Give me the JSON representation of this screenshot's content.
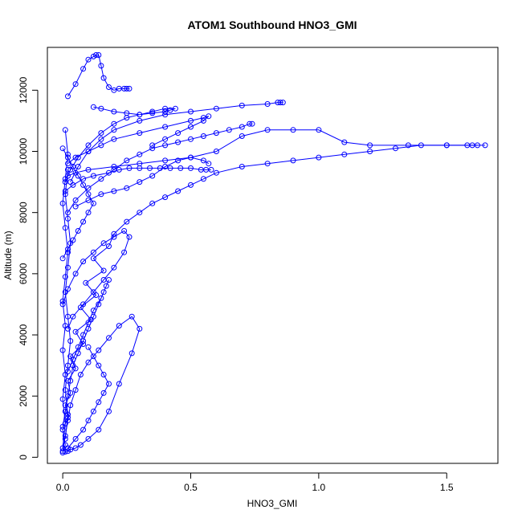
{
  "chart_data": {
    "type": "scatter",
    "title": "ATOM1 Southbound HNO3_GMI",
    "xlabel": "HNO3_GMI",
    "ylabel": "Altitude (m)",
    "xlim": [
      -0.06,
      1.7
    ],
    "ylim": [
      -200,
      13400
    ],
    "xticks": [
      0.0,
      0.5,
      1.0,
      1.5
    ],
    "xtick_labels": [
      "0.0",
      "0.5",
      "1.0",
      "1.5"
    ],
    "yticks": [
      0,
      2000,
      4000,
      6000,
      8000,
      10000,
      12000
    ],
    "ytick_labels": [
      "0",
      "2000",
      "4000",
      "6000",
      "8000",
      "10000",
      "12000"
    ],
    "marker": "open-circle",
    "connected": true,
    "grid": false,
    "colors": {
      "series": "#0000ff",
      "axis": "#000000",
      "background": "#ffffff"
    },
    "series": [
      {
        "x": [
          0.0,
          0.01,
          0.0,
          0.02,
          0.01,
          0.03,
          0.02,
          0.05,
          0.03,
          0.08,
          0.05,
          0.11,
          0.07,
          0.13,
          0.09,
          0.16,
          0.12,
          0.18,
          0.2,
          0.25,
          0.3,
          0.35,
          0.4,
          0.45,
          0.5,
          0.55,
          0.6,
          0.7,
          0.8,
          0.9,
          1.0,
          1.1,
          1.2,
          1.3,
          1.4,
          1.5,
          1.58,
          1.6,
          1.65
        ],
        "y": [
          150,
          400,
          900,
          1300,
          1700,
          2100,
          2500,
          2900,
          3300,
          3700,
          4100,
          4500,
          4900,
          5300,
          5700,
          6100,
          6500,
          6900,
          7300,
          7700,
          8000,
          8300,
          8500,
          8700,
          8900,
          9100,
          9300,
          9500,
          9600,
          9700,
          9800,
          9900,
          10000,
          10100,
          10200,
          10200,
          10200,
          10200,
          10200
        ]
      },
      {
        "x": [
          1.62,
          1.5,
          1.35,
          1.2,
          1.1,
          1.0,
          0.9,
          0.8,
          0.7,
          0.6,
          0.5,
          0.4,
          0.3,
          0.2,
          0.1,
          0.05,
          0.02
        ],
        "y": [
          10200,
          10200,
          10200,
          10200,
          10300,
          10700,
          10700,
          10700,
          10500,
          10000,
          9800,
          9700,
          9600,
          9500,
          9400,
          9300,
          9200
        ]
      },
      {
        "x": [
          0.0,
          0.01,
          0.02,
          0.03,
          0.05,
          0.07,
          0.1,
          0.14,
          0.18,
          0.22,
          0.27,
          0.3,
          0.27,
          0.22,
          0.18,
          0.14,
          0.1,
          0.07,
          0.05,
          0.03,
          0.02,
          0.01
        ],
        "y": [
          200,
          700,
          1200,
          1700,
          2200,
          2700,
          3100,
          3500,
          3900,
          4300,
          4600,
          4200,
          3400,
          2400,
          1500,
          900,
          600,
          400,
          300,
          250,
          200,
          180
        ]
      },
      {
        "x": [
          0.02,
          0.05,
          0.1,
          0.15,
          0.2,
          0.25,
          0.3,
          0.35,
          0.4,
          0.45,
          0.5,
          0.55,
          0.6,
          0.65,
          0.7,
          0.73,
          0.74
        ],
        "y": [
          8000,
          8400,
          8800,
          9100,
          9400,
          9700,
          9900,
          10100,
          10200,
          10300,
          10400,
          10500,
          10600,
          10700,
          10800,
          10900,
          10900
        ]
      },
      {
        "x": [
          0.01,
          0.03,
          0.06,
          0.1,
          0.15,
          0.2,
          0.25,
          0.3,
          0.35,
          0.4,
          0.44,
          0.42,
          0.4,
          0.35,
          0.3,
          0.25,
          0.2,
          0.15,
          0.12
        ],
        "y": [
          9000,
          9400,
          9800,
          10200,
          10600,
          10900,
          11100,
          11200,
          11300,
          11400,
          11400,
          11350,
          11300,
          11250,
          11200,
          11250,
          11300,
          11400,
          11450
        ]
      },
      {
        "x": [
          0.02,
          0.05,
          0.08,
          0.1,
          0.12,
          0.13,
          0.14,
          0.15,
          0.16,
          0.18,
          0.2,
          0.22,
          0.24,
          0.25,
          0.26
        ],
        "y": [
          11800,
          12200,
          12700,
          13000,
          13100,
          13150,
          13150,
          12800,
          12400,
          12100,
          12000,
          12050,
          12050,
          12050,
          12050
        ]
      },
      {
        "x": [
          0.03,
          0.06,
          0.1,
          0.15,
          0.2,
          0.3,
          0.4,
          0.5,
          0.6,
          0.7,
          0.8,
          0.84,
          0.85,
          0.86
        ],
        "y": [
          9000,
          9500,
          10000,
          10400,
          10700,
          11000,
          11200,
          11300,
          11400,
          11500,
          11550,
          11600,
          11600,
          11600
        ]
      },
      {
        "x": [
          0.0,
          0.02,
          0.05,
          0.08,
          0.12,
          0.16,
          0.2,
          0.24,
          0.26,
          0.24,
          0.2,
          0.16,
          0.12,
          0.08,
          0.04,
          0.02
        ],
        "y": [
          5000,
          5500,
          6000,
          6400,
          6700,
          7000,
          7200,
          7400,
          7200,
          6700,
          6200,
          5800,
          5400,
          5000,
          4600,
          4200
        ]
      },
      {
        "x": [
          0.0,
          0.01,
          0.02,
          0.03,
          0.04,
          0.06,
          0.08,
          0.1,
          0.12,
          0.14,
          0.16,
          0.18,
          0.17,
          0.15,
          0.12,
          0.1,
          0.08,
          0.06,
          0.04,
          0.02
        ],
        "y": [
          1000,
          1500,
          2000,
          2500,
          3000,
          3400,
          3800,
          4200,
          4600,
          5000,
          5400,
          5800,
          5600,
          5200,
          4800,
          4400,
          4000,
          3600,
          3200,
          2800
        ]
      },
      {
        "x": [
          0.01,
          0.04,
          0.08,
          0.12,
          0.18,
          0.22,
          0.26,
          0.3,
          0.34,
          0.38,
          0.42,
          0.46,
          0.5,
          0.54,
          0.56,
          0.58
        ],
        "y": [
          8700,
          8900,
          9100,
          9200,
          9300,
          9400,
          9450,
          9450,
          9450,
          9450,
          9450,
          9450,
          9450,
          9400,
          9400,
          9400
        ]
      },
      {
        "x": [
          0.05,
          0.1,
          0.15,
          0.2,
          0.25,
          0.3,
          0.35,
          0.4,
          0.45,
          0.5,
          0.55,
          0.57
        ],
        "y": [
          8200,
          8400,
          8600,
          8700,
          8800,
          9000,
          9200,
          9500,
          9700,
          9800,
          9700,
          9600
        ]
      },
      {
        "x": [
          0.02,
          0.05,
          0.1,
          0.15,
          0.2,
          0.3,
          0.4,
          0.5,
          0.55,
          0.57,
          0.55,
          0.5,
          0.45,
          0.4,
          0.35
        ],
        "y": [
          9600,
          9800,
          10000,
          10200,
          10400,
          10600,
          10800,
          11000,
          11100,
          11150,
          11000,
          10800,
          10600,
          10400,
          10200
        ]
      },
      {
        "x": [
          0.0,
          0.02,
          0.04,
          0.06,
          0.08,
          0.1,
          0.12,
          0.1,
          0.08,
          0.06,
          0.04,
          0.02,
          0.0
        ],
        "y": [
          6500,
          6800,
          7100,
          7400,
          7700,
          8000,
          8300,
          8600,
          8900,
          9200,
          9500,
          9800,
          10100
        ]
      },
      {
        "x": [
          0.0,
          0.01,
          0.0,
          0.01,
          0.0,
          0.01,
          0.0,
          0.01,
          0.02,
          0.01,
          0.0,
          0.01,
          0.02,
          0.01
        ],
        "y": [
          300,
          1100,
          1900,
          2700,
          3500,
          4300,
          5100,
          5900,
          6700,
          7500,
          8300,
          9100,
          9900,
          10700
        ]
      },
      {
        "x": [
          0.01,
          0.02,
          0.01,
          0.02,
          0.03,
          0.02,
          0.01,
          0.02,
          0.03,
          0.02,
          0.01,
          0.02
        ],
        "y": [
          600,
          1400,
          2200,
          3000,
          3800,
          4600,
          5400,
          6200,
          7000,
          7800,
          8600,
          9400
        ]
      },
      {
        "x": [
          0.02,
          0.05,
          0.08,
          0.1,
          0.12,
          0.14,
          0.16,
          0.18,
          0.16,
          0.14,
          0.12,
          0.1
        ],
        "y": [
          300,
          600,
          900,
          1200,
          1500,
          1800,
          2100,
          2400,
          2700,
          3000,
          3300,
          3600
        ]
      }
    ]
  }
}
